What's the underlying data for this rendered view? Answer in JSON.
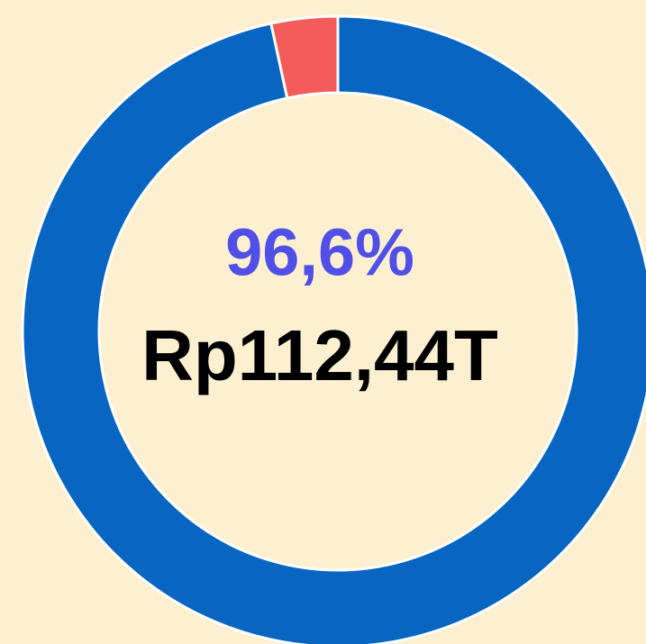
{
  "chart_data": {
    "type": "donut",
    "values": [
      96.6,
      3.4
    ],
    "value_labels": [
      "96,6%",
      null
    ],
    "colors": [
      "#0866c2",
      "#f45b5b"
    ],
    "center_value": "Rp112,44T"
  }
}
